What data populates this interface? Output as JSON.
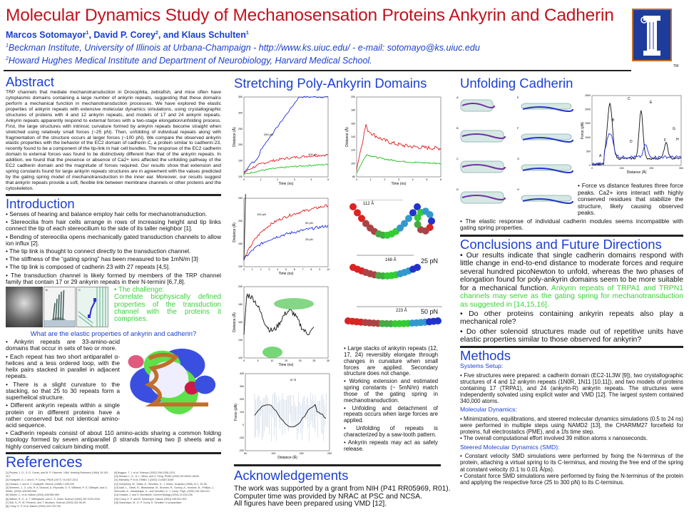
{
  "header": {
    "title": "Molecular Dynamics Study of Mechanosensation Proteins Ankyrin and Cadherin",
    "authors": [
      {
        "name": "Marcos Sotomayor",
        "sup": "1"
      },
      {
        "name": "David P. Corey",
        "sup": "2"
      },
      {
        "name": "Klaus Schulten",
        "sup": "1"
      }
    ],
    "author_sep1": ", ",
    "author_sep2": ", and ",
    "affiliation1_sup": "1",
    "affiliation1": "Beckman Institute, University of Illinois at Urbana-Champaign - http://www.ks.uiuc.edu/ - e-mail: sotomayo@ks.uiuc.edu",
    "affiliation2_sup": "2",
    "affiliation2": "Howard Hughes Medical Institute and Department of Neurobiology, Harvard Medical School.",
    "logo_mark": "TM"
  },
  "abstract": {
    "title": "Abstract",
    "text": "TRP channels that mediate mechanotransduction in Drosophila, zebrafish, and mice often have cytoplasmic domains containing a large number of ankyrin repeats, suggesting that these domains perform a mechanical function in mechanotransduction processes. We have explored the elastic properties of ankyrin repeats with extensive molecular dynamics simulations, using crystallographic structures of proteins with 4 and 12 ankyrin repeats, and models of 17 and 24 ankyrin repeats. Ankyrin repeats apparently respond to external forces with a two-stage elongation/unfolding process. First, the large structures with intrinsic curvature formed by ankyrin repeats become straight when stretched using relatively small forces (~25 pN). Then, unfolding of individual repeats along with fragmentation of the structure occurs at larger forces (~100 pN). We compare the observed ankyrin elastic properties with the behavior of the EC2 domain of cadherin C, a protein similar to cadherin-23, recently found to be a component of the tip-link in hair cell bundles. The response of the EC2 cadherin domain to external forces was found to be distinctively different than that of the ankyrin repeats. In addition, we found that the presence or absence of Ca2+ ions affected the unfolding pathway of the EC2 cadherin domain and the magnitude of forces required. Our results show that extension and spring constants found for large ankyrin repeats structures are in agreement with the values predicted by the gating spring model of mechanotransduction in the inner ear. Moreover, our results suggest that ankyrin repeats provide a soft, flexible link between membrane channels or other proteins and the cytoskeleton."
  },
  "introduction": {
    "title": "Introduction",
    "bullets": [
      "• Senses of hearing and balance employ hair cells for mechanotransduction.",
      "• Stereocilia from hair cells arrange in rows of increasing height and tip links connect the tip of each stereocilium to the side of its taller neighbor [1].",
      "• Bending of stereocilia opens mechanically gated transduction channels to allow ion influx [2].",
      "• The tip link is thought to connect directly to the transduction channel.",
      "• The stiffness of the “gating spring” has been measured to be 1mN/m [3]",
      "• The tip link is composed of cadherin 23  with 27 repeats [4,5].",
      "• The transduction channel is likely formed by members of the TRP channel family that contain 17 or 29 ankyrin repeats in their N-termini [6,7,8]."
    ],
    "figure_panel_labels": [
      "B",
      "C"
    ],
    "challenge_title": "• The challenge:",
    "challenge_text": "Correlate biophysically defined properties of the transduction channel with the proteins it comprises.",
    "question": "What are the elastic properties of ankyrin and cadherin?",
    "ankyrin_bullets": [
      "• Ankyrin repeats are 33-amino-acid domains that occur in sets of two or more.",
      "• Each repeat has two short antiparallel α-helices and a less ordered loop, with the helix pairs stacked in parallel in adjacent repeats.",
      "• There is a slight curvature to the stacking, so that 25 to 30 repeats form a superhelical structure.",
      "• Different ankyrin repeats within a single protein or in different proteins have a rather conserved but not identical amino-acid sequence."
    ],
    "cadherin_bullet": "• Cadherin repeats consist of about 110 amino-acids sharing a common folding topology formed by seven antiparallel β strands forming two β sheets and a highly conserved calcium binding motif."
  },
  "references": {
    "title": "References",
    "col1": [
      "[1] Pickles, J. O., S. D. Comis, and M. P. Osborne. 1984. Hearing Research (1984) 15:103-112",
      "[2] Hudspeth, A. J. and D. P. Corey. PNAS (1977) 74:2407-2411",
      "[3] Howard, J. and A. J. Hudspeth. Neuron (1988) 1:189-199",
      "[4] Siemens, J., C. Lillo, R. A. Dumont, A. Reynolds, D. S. Williams, P. G. Gillespie, and U. Müller. (2004) 428:950-955",
      "[5] Söllner, C. et al. Nature (2004) 428:955-959",
      "[6] Walker, R. G., A. T. Willingham, and C. S. Zuker. Science (2000) 287:2229-2234",
      "[7] Sidi, S., R. W. Friedrich, and T. Nicolson. Science (2003) 301:96-99",
      "[8] Corey, D. P. et al. Nature (2004) 432:723-730"
    ],
    "col2": [
      "[9] Boggon, T. J. et al. Science (2002) 296:1308-1313",
      "[10] Mosavi, L. K., D. L. Minor, and Z. Peng. PNAS (2002) 99:16029-16034",
      "[11] Michaely, P. et al. EMBO J (2002) 21:6387-6396",
      "[12] Humphrey, W., Dalke, A., Schulten, K., J. Molec. Graphics (1996) 14.1, 33-38",
      "[13] Kalé, L., Skeel, R., Bhandarkar, M., Brunner, R., Gursoy, A., Krawetz, N., Phillips, J., Shinozaki, A., Varadarajan, K., and Schulten, K. J. Comp. Phys. (1999) 151:283-312",
      "[14] Howard, J. and S. Bechstedt. Current Biology (2004) 14:224-226",
      "[15] Corey, D. P. and M. Sotomayor. Nature (2004) 428:901-903",
      "[16] Sotomayor, M., D. P. Corey, K. Schulten. In preparation"
    ]
  },
  "stretching": {
    "title": "Stretching  Poly-Ankyrin Domains",
    "axis_distance": "Distance (Å)",
    "axis_time": "Time (ns)",
    "axis_force": "Force (pN)",
    "plot1": {
      "yticks": [
        "100",
        "150",
        "200",
        "250",
        "300",
        "350"
      ],
      "xticks": [
        "0",
        "1",
        "2",
        "3",
        "4",
        "5"
      ],
      "labels": [
        "250 pN",
        "100 pN"
      ]
    },
    "plot2": {
      "yticks": [
        "80",
        "100",
        "120",
        "140",
        "160",
        "180",
        "200"
      ],
      "xticks": [
        "0",
        "1",
        "2",
        "3",
        "4",
        "5",
        "6"
      ]
    },
    "plot3": {
      "yticks": [
        "100",
        "150",
        "200",
        "250"
      ],
      "xticks": [
        "0",
        "1",
        "2",
        "3",
        "4",
        "5",
        "6",
        "7",
        "8",
        "9",
        "10"
      ],
      "labels": [
        "100 pN",
        "50 pN",
        "25 pN"
      ]
    },
    "plot4": {
      "yticks": [
        "120",
        "140",
        "160",
        "180",
        "200"
      ],
      "xticks": [
        "0",
        "5",
        "10",
        "15",
        "20",
        "25",
        "30"
      ]
    },
    "plot5": {
      "yticks": [
        "-200",
        "-100",
        "0",
        "100",
        "200",
        "300",
        "400"
      ],
      "xticks": [
        "50",
        "100",
        "150",
        "200"
      ],
      "label": "87 Å"
    },
    "structures": [
      {
        "length": "112 Å",
        "force": ""
      },
      {
        "length": "168 Å",
        "force": "25 pN"
      },
      {
        "length": "223 Å",
        "force": "50 pN"
      }
    ],
    "bullets": [
      "• Large stacks of ankyrin repeats (12, 17, 24) reversibly elongate through changes in curvature when small forces are applied. Secondary structure does not change.",
      "• Working extension and estimated spring constants (~ 5mN/m) match those of the gating spring in mechanotransduction.",
      "• Unfolding and detachment of repeats occurs when large forces are applied.",
      "• Unfolding of repeats is characterized by a saw-tooth pattern.",
      "• Ankyrin repeats may act as safety release."
    ]
  },
  "acknowledgements": {
    "title": "Acknowledgements",
    "lines": [
      "The work was supported by a grant from NIH (P41 RR05969, R01).",
      "Computer time was provided by NRAC at PSC and NCSA.",
      "All figures have been prepared using VMD [12]."
    ]
  },
  "cadherin": {
    "title": "Unfolding Cadherin",
    "panels": [
      "A",
      "B",
      "C",
      "D",
      "E",
      "F",
      "G",
      "H"
    ],
    "plot": {
      "ylabel": "Force (pN)",
      "xlabel": "Distance (Å)",
      "yticks": [
        "0",
        "500",
        "1000",
        "1500",
        "2000",
        "2500"
      ],
      "xticks": [
        "0",
        "100",
        "200",
        "300"
      ],
      "peaks": [
        "A",
        "B",
        "C",
        "D",
        "E",
        "F",
        "G",
        "H"
      ]
    },
    "caption": "• Force vs distance  features three force peaks. Ca2+ ions interact with highly conserved residues that stabilize the structure, likely causing observed peaks.",
    "bullet": "• The elastic response of individual cadherin modules seems incompatible with gating spring properties."
  },
  "conclusions": {
    "title": "Conclusions and Future Directions",
    "bullet1": "• Our results indicate that single cadherin domains respond with little change in end-to-end distance to moderate forces and require several hundred picoNewton to unfold, whereas the two phases of elongation found for poly-ankyrin domains seem to be more suitable for a mechanical function. ",
    "bullet1_highlight": "Ankyrin repeats of TRPA1 and TRPN1 channels may serve as the gating spring for mechanotransduction as suggested in [14,15,16].",
    "bullet2": "• Do other proteins containing ankyrin repeats also play a mechanical role?",
    "bullet3": "• Do other solenoid structures made out of repetitive units have elastic properties similar to those observed for ankyrin?"
  },
  "methods": {
    "title": "Methods",
    "setup_title": "Systems Setup:",
    "setup": "• Five structures were prepared: a cadherin domain (EC2-1L3W [9]), two crystallographic structures of 4 and 12 ankyrin repeats (1N0R, 1N11 [10,11]), and two models of proteins containing 17 (TRPA1), and 24 (ankyrin-R) ankyrin repeats. The structures were independently solvated using explicit water and VMD [12]. The largest system contained 340,000 atoms.",
    "md_title": "Molecular Dynamics:",
    "md": [
      "• Minimizations, equilibrations, and steered molecular dynamics simulations (0.5 to 24 ns) were performed in multiple steps using NAMD2 [13], the CHARMM27 forcefield for proteins, full electrostatics (PME), and a 1fs time step.",
      "• The overall computational effort involved 39 million atoms x nanoseconds."
    ],
    "smd_title": "Steered Molecular Dynamics (SMD):",
    "smd": [
      "• Constant velocity SMD simulations were performed by fixing the N-terminus of the protein, attaching a virtual spring to its C-terminus, and moving the free end of the spring at constant velocity (0.1 to 0.01 Å/ps).",
      "• Constant force SMD simulations were performed by fixing the N-terminus of the protein and applying the respective force (25 to 300 pN) to its C-terminus."
    ]
  },
  "colors": {
    "title": "#c3121e",
    "heading": "#1c3fd4",
    "highlight": "#38d238",
    "logo_blue": "#1e3c9c",
    "logo_orange": "#c0702a"
  }
}
